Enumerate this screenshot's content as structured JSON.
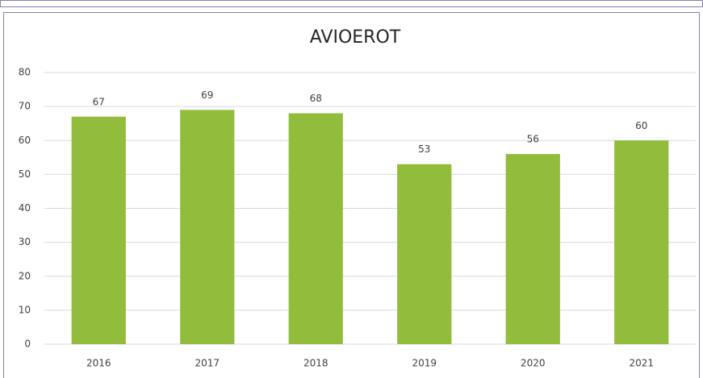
{
  "chart_data": {
    "type": "bar",
    "title": "AVIOEROT",
    "categories": [
      "2016",
      "2017",
      "2018",
      "2019",
      "2020",
      "2021"
    ],
    "values": [
      67,
      69,
      68,
      53,
      56,
      60
    ],
    "color": "#92bd3c",
    "ylim": [
      0,
      80
    ],
    "yticks": [
      0,
      10,
      20,
      30,
      40,
      50,
      60,
      70,
      80
    ],
    "grid": true,
    "data_labels": true
  }
}
